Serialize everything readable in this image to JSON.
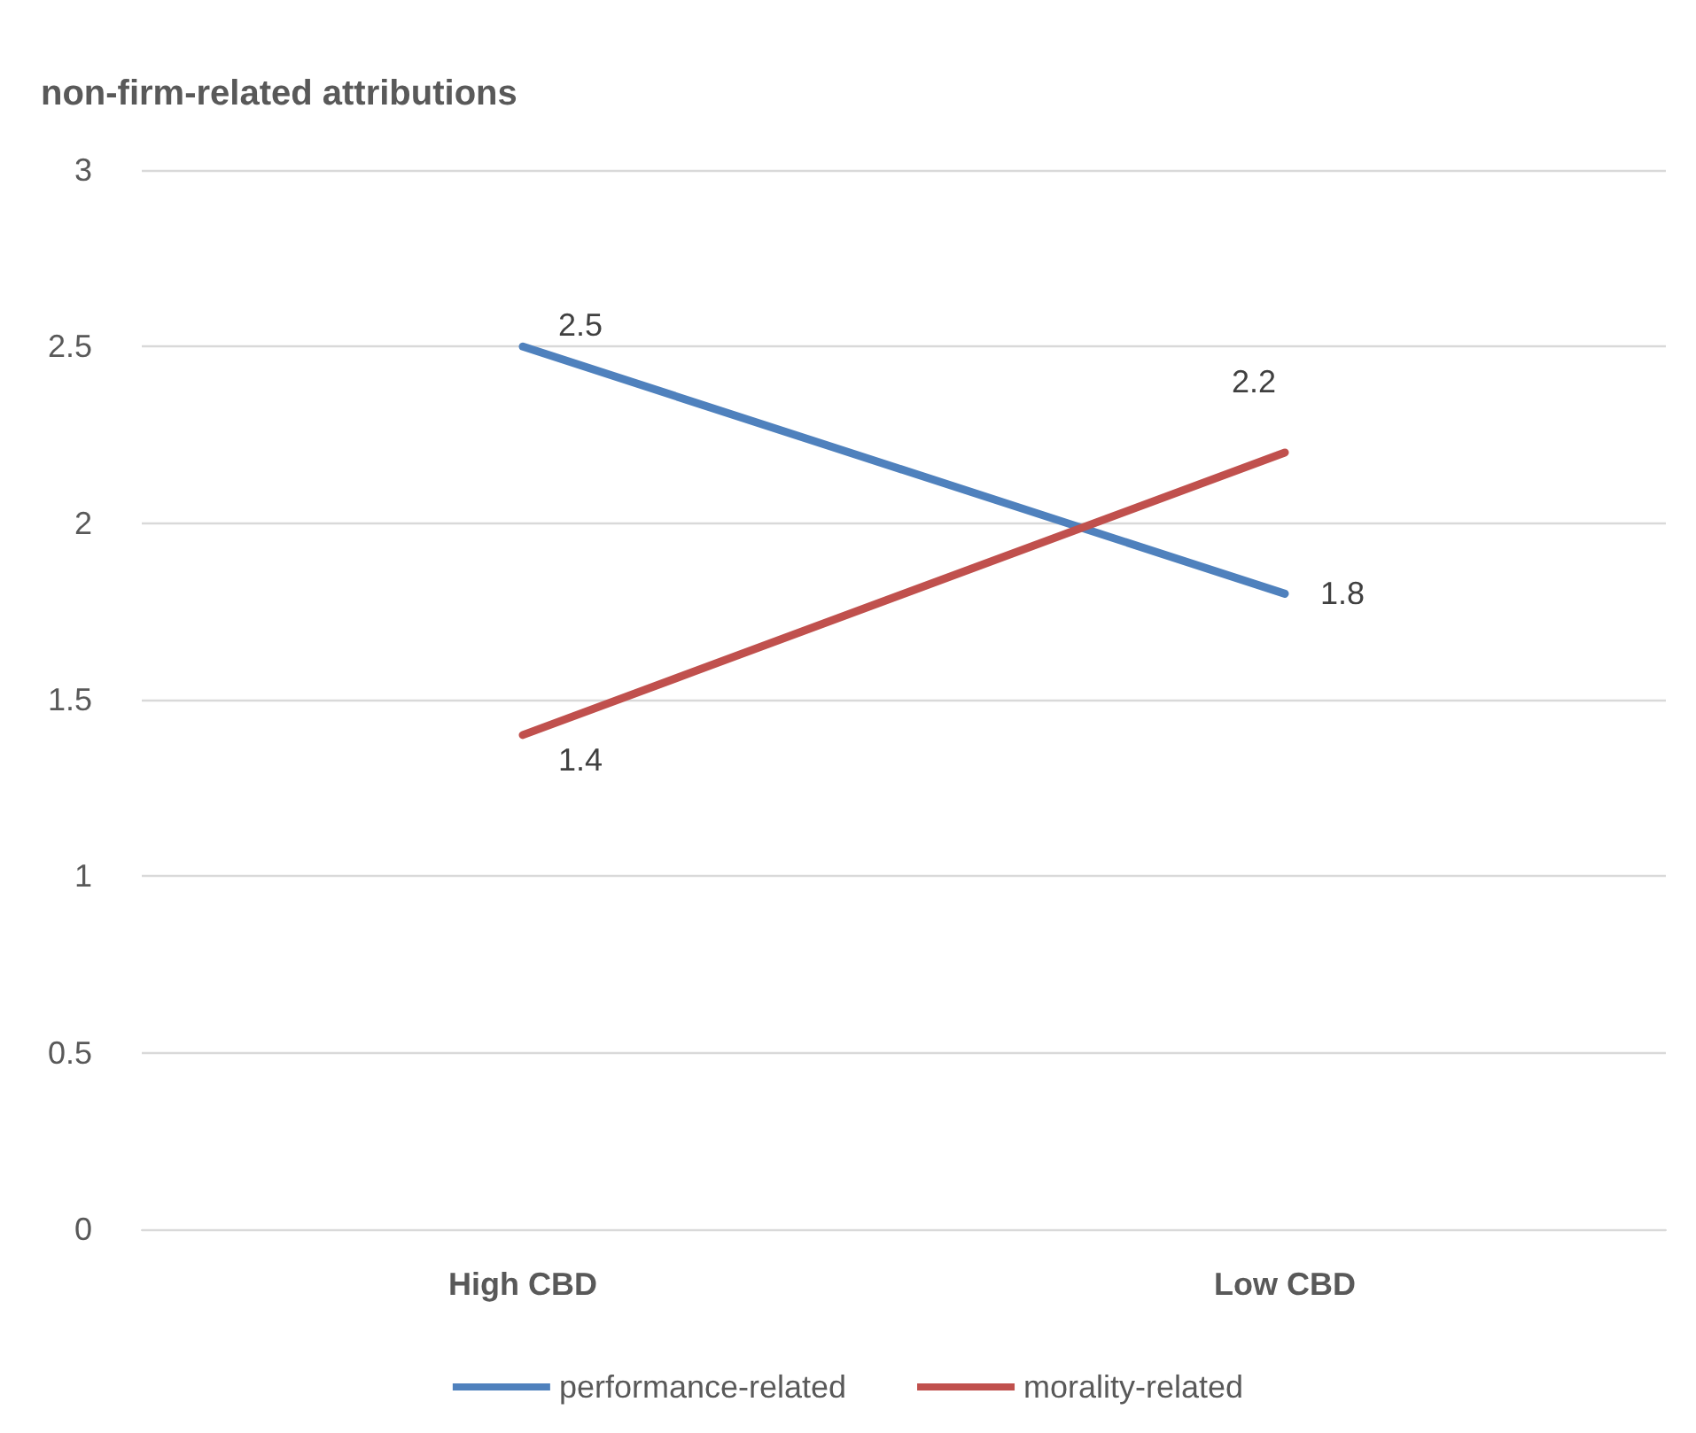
{
  "chart_data": {
    "type": "line",
    "title": "non-firm-related attributions",
    "categories": [
      "High CBD",
      "Low CBD"
    ],
    "series": [
      {
        "name": "performance-related",
        "color": "#4f81bd",
        "values": [
          2.5,
          1.8
        ]
      },
      {
        "name": "morality-related",
        "color": "#c0504d",
        "values": [
          1.4,
          2.2
        ]
      }
    ],
    "ylim": [
      0,
      3
    ],
    "yticks": [
      0,
      0.5,
      1,
      1.5,
      2,
      2.5,
      3
    ],
    "grid": "y",
    "legend": "bottom",
    "data_labels": true,
    "marker": "none",
    "line_style": "solid"
  }
}
